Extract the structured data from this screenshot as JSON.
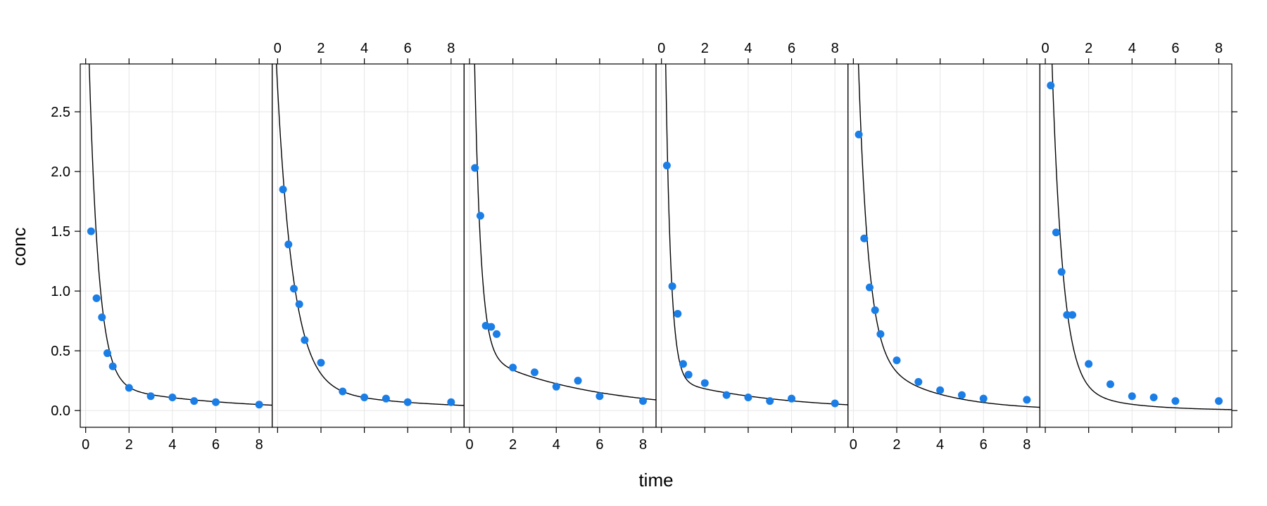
{
  "chart_data": {
    "type": "scatter",
    "layout": "trellis panels in one row with shared axes",
    "xlabel": "time",
    "ylabel": "conc",
    "xlim": [
      -0.25,
      8.6
    ],
    "ylim": [
      -0.14,
      2.9
    ],
    "x_ticks": [
      0,
      2,
      4,
      6,
      8
    ],
    "y_ticks": [
      0.0,
      0.5,
      1.0,
      1.5,
      2.0,
      2.5
    ],
    "y_tick_labels": [
      "0.0",
      "0.5",
      "1.0",
      "1.5",
      "2.0",
      "2.5"
    ],
    "grid": true,
    "point_color": "#1a7ee6",
    "line_color": "#000000",
    "grid_color": "#e6e6e6",
    "panels": [
      {
        "x": [
          0.25,
          0.5,
          0.75,
          1.0,
          1.25,
          2,
          3,
          4,
          5,
          6,
          8
        ],
        "y": [
          1.5,
          0.94,
          0.78,
          0.48,
          0.37,
          0.19,
          0.12,
          0.11,
          0.08,
          0.07,
          0.05
        ],
        "fit": {
          "A": 3.9,
          "alpha": 2.3,
          "B": 0.23,
          "beta": 0.19
        }
      },
      {
        "x": [
          0.25,
          0.5,
          0.75,
          1.0,
          1.25,
          2,
          3,
          4,
          5,
          6,
          8
        ],
        "y": [
          1.85,
          1.39,
          1.02,
          0.89,
          0.59,
          0.4,
          0.16,
          0.11,
          0.1,
          0.07,
          0.07
        ],
        "fit": {
          "A": 2.5,
          "alpha": 1.35,
          "B": 0.2,
          "beta": 0.18
        }
      },
      {
        "x": [
          0.25,
          0.5,
          0.75,
          1.0,
          1.25,
          2,
          3,
          4,
          5,
          6,
          8
        ],
        "y": [
          2.03,
          1.63,
          0.71,
          0.7,
          0.64,
          0.36,
          0.32,
          0.2,
          0.25,
          0.12,
          0.08
        ],
        "fit": {
          "A": 5.5,
          "alpha": 3.5,
          "B": 0.5,
          "beta": 0.2
        }
      },
      {
        "x": [
          0.25,
          0.5,
          0.75,
          1.0,
          1.25,
          2,
          3,
          4,
          5,
          6,
          8
        ],
        "y": [
          2.05,
          1.04,
          0.81,
          0.39,
          0.3,
          0.23,
          0.13,
          0.11,
          0.08,
          0.1,
          0.06
        ],
        "fit": {
          "A": 6.0,
          "alpha": 4.2,
          "B": 0.27,
          "beta": 0.2
        }
      },
      {
        "x": [
          0.25,
          0.5,
          0.75,
          1.0,
          1.25,
          2,
          3,
          4,
          5,
          6,
          8
        ],
        "y": [
          2.31,
          1.44,
          1.03,
          0.84,
          0.64,
          0.42,
          0.24,
          0.17,
          0.13,
          0.1,
          0.09
        ],
        "fit": {
          "A": 4.0,
          "alpha": 2.2,
          "B": 0.55,
          "beta": 0.35
        }
      },
      {
        "x": [
          0.25,
          0.5,
          0.75,
          1.0,
          1.25,
          2,
          3,
          4,
          5,
          6,
          8
        ],
        "y": [
          2.72,
          1.49,
          1.16,
          0.8,
          0.8,
          0.39,
          0.22,
          0.12,
          0.11,
          0.08,
          0.08
        ],
        "fit": {
          "A": 5.0,
          "alpha": 2.0,
          "B": 0.25,
          "beta": 0.4
        }
      }
    ]
  }
}
